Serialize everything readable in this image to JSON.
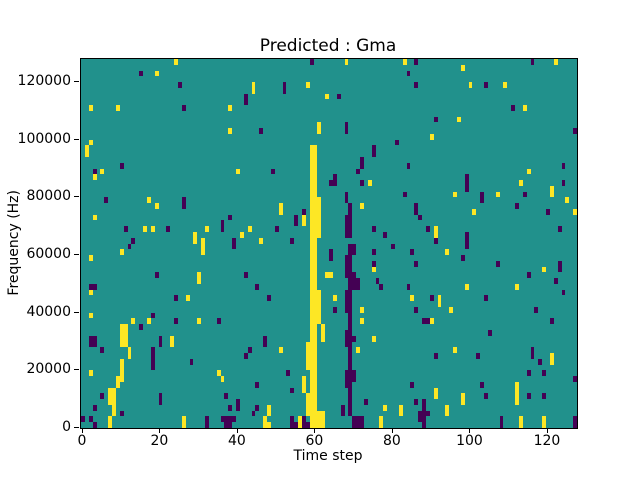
{
  "figure": {
    "title": "Predicted : Gma",
    "xlabel": "Time step",
    "ylabel": "Frequency (Hz)"
  },
  "chart_data": {
    "type": "heatmap",
    "title": "Predicted : Gma",
    "xlabel": "Time step",
    "ylabel": "Frequency (Hz)",
    "x_range": [
      0,
      128
    ],
    "y_range_hz": [
      0,
      128000
    ],
    "grid": {
      "time_steps": 128,
      "freq_bins": 64,
      "hz_per_bin": 2000
    },
    "x_ticks": [
      0,
      20,
      40,
      60,
      80,
      100,
      120
    ],
    "y_ticks": [
      0,
      20000,
      40000,
      60000,
      80000,
      100000,
      120000
    ],
    "legend": null,
    "colors": {
      "background_mid": "#21918c",
      "high_yellow": "#fde725",
      "low_purple": "#440154",
      "figure_bg": "#ffffff",
      "text": "#000000"
    },
    "yellow_runs_t_flo_fhi": [
      [
        59,
        0,
        48
      ],
      [
        60,
        0,
        48
      ],
      [
        61,
        33,
        39
      ],
      [
        61,
        18,
        23
      ],
      [
        61,
        0,
        2
      ],
      [
        58,
        10,
        14
      ],
      [
        58,
        2,
        5
      ],
      [
        62,
        15,
        17
      ],
      [
        62,
        0,
        2
      ],
      [
        57,
        35,
        36
      ],
      [
        57,
        6,
        8
      ],
      [
        24,
        63,
        63
      ],
      [
        68,
        63,
        63
      ],
      [
        83,
        63,
        63
      ],
      [
        122,
        63,
        63
      ],
      [
        19,
        61,
        61
      ],
      [
        98,
        62,
        62
      ],
      [
        44,
        58,
        59
      ],
      [
        58,
        59,
        59
      ],
      [
        63,
        57,
        57
      ],
      [
        100,
        59,
        59
      ],
      [
        109,
        59,
        59
      ],
      [
        2,
        55,
        55
      ],
      [
        9,
        55,
        55
      ],
      [
        38,
        55,
        55
      ],
      [
        114,
        55,
        55
      ],
      [
        38,
        51,
        51
      ],
      [
        61,
        51,
        52
      ],
      [
        97,
        53,
        53
      ],
      [
        90,
        50,
        50
      ],
      [
        1,
        47,
        48
      ],
      [
        2,
        49,
        49
      ],
      [
        5,
        44,
        44
      ],
      [
        40,
        44,
        44
      ],
      [
        115,
        44,
        44
      ],
      [
        3,
        43,
        43
      ],
      [
        51,
        37,
        38
      ],
      [
        72,
        38,
        38
      ],
      [
        17,
        39,
        39
      ],
      [
        19,
        38,
        38
      ],
      [
        3,
        36,
        36
      ],
      [
        96,
        40,
        40
      ],
      [
        107,
        40,
        40
      ],
      [
        121,
        40,
        41
      ],
      [
        113,
        42,
        42
      ],
      [
        74,
        42,
        42
      ],
      [
        16,
        34,
        34
      ],
      [
        18,
        34,
        34
      ],
      [
        32,
        34,
        34
      ],
      [
        91,
        33,
        34
      ],
      [
        101,
        37,
        37
      ],
      [
        125,
        39,
        39
      ],
      [
        127,
        37,
        37
      ],
      [
        29,
        32,
        33
      ],
      [
        31,
        30,
        32
      ],
      [
        41,
        33,
        33
      ],
      [
        43,
        34,
        34
      ],
      [
        46,
        32,
        32
      ],
      [
        10,
        30,
        30
      ],
      [
        94,
        30,
        30
      ],
      [
        2,
        29,
        29
      ],
      [
        30,
        25,
        26
      ],
      [
        63,
        26,
        26
      ],
      [
        64,
        26,
        26
      ],
      [
        75,
        27,
        27
      ],
      [
        27,
        22,
        22
      ],
      [
        65,
        22,
        22
      ],
      [
        85,
        22,
        22
      ],
      [
        92,
        21,
        22
      ],
      [
        2,
        23,
        23
      ],
      [
        99,
        24,
        24
      ],
      [
        112,
        24,
        24
      ],
      [
        119,
        27,
        27
      ],
      [
        72,
        20,
        20
      ],
      [
        72,
        18,
        18
      ],
      [
        95,
        20,
        20
      ],
      [
        90,
        18,
        18
      ],
      [
        13,
        18,
        18
      ],
      [
        17,
        18,
        18
      ],
      [
        30,
        18,
        18
      ],
      [
        2,
        19,
        19
      ],
      [
        23,
        14,
        15
      ],
      [
        51,
        13,
        13
      ],
      [
        96,
        13,
        13
      ],
      [
        71,
        13,
        13
      ],
      [
        121,
        11,
        12
      ],
      [
        10,
        14,
        17
      ],
      [
        11,
        14,
        17
      ],
      [
        12,
        12,
        13
      ],
      [
        10,
        8,
        11
      ],
      [
        9,
        7,
        8
      ],
      [
        8,
        2,
        6
      ],
      [
        7,
        4,
        6
      ],
      [
        75,
        15,
        15
      ],
      [
        2,
        9,
        9
      ],
      [
        35,
        9,
        9
      ],
      [
        36,
        8,
        8
      ],
      [
        91,
        5,
        6
      ],
      [
        98,
        4,
        5
      ],
      [
        112,
        5,
        7
      ],
      [
        112,
        4,
        4
      ],
      [
        94,
        2,
        3
      ],
      [
        48,
        2,
        3
      ],
      [
        78,
        3,
        3
      ],
      [
        82,
        2,
        3
      ],
      [
        7,
        0,
        1
      ],
      [
        26,
        0,
        1
      ],
      [
        47,
        0,
        1
      ],
      [
        48,
        0,
        0
      ],
      [
        56,
        0,
        1
      ],
      [
        77,
        0,
        1
      ],
      [
        113,
        0,
        1
      ],
      [
        119,
        0,
        1
      ]
    ],
    "purple_runs_t_flo_fhi": [
      [
        68,
        39,
        40
      ],
      [
        68,
        33,
        36
      ],
      [
        68,
        26,
        29
      ],
      [
        68,
        20,
        23
      ],
      [
        68,
        14,
        16
      ],
      [
        68,
        7,
        9
      ],
      [
        69,
        2,
        31
      ],
      [
        69,
        33,
        38
      ],
      [
        70,
        30,
        31
      ],
      [
        70,
        24,
        26
      ],
      [
        70,
        15,
        15
      ],
      [
        70,
        8,
        9
      ],
      [
        70,
        0,
        1
      ],
      [
        71,
        24,
        25
      ],
      [
        71,
        0,
        1
      ],
      [
        67,
        2,
        3
      ],
      [
        59,
        63,
        63
      ],
      [
        86,
        63,
        63
      ],
      [
        116,
        63,
        63
      ],
      [
        15,
        61,
        61
      ],
      [
        84,
        61,
        61
      ],
      [
        25,
        59,
        59
      ],
      [
        86,
        59,
        59
      ],
      [
        104,
        59,
        59
      ],
      [
        52,
        58,
        59
      ],
      [
        66,
        57,
        57
      ],
      [
        42,
        56,
        57
      ],
      [
        26,
        55,
        55
      ],
      [
        111,
        55,
        55
      ],
      [
        91,
        53,
        53
      ],
      [
        46,
        51,
        51
      ],
      [
        68,
        51,
        52
      ],
      [
        127,
        51,
        51
      ],
      [
        81,
        49,
        49
      ],
      [
        75,
        47,
        48
      ],
      [
        72,
        45,
        46
      ],
      [
        84,
        45,
        45
      ],
      [
        124,
        45,
        45
      ],
      [
        49,
        44,
        44
      ],
      [
        65,
        43,
        43
      ],
      [
        71,
        44,
        44
      ],
      [
        3,
        44,
        44
      ],
      [
        10,
        45,
        45
      ],
      [
        99,
        42,
        43
      ],
      [
        64,
        42,
        42
      ],
      [
        65,
        42,
        42
      ],
      [
        72,
        42,
        42
      ],
      [
        124,
        42,
        42
      ],
      [
        99,
        41,
        41
      ],
      [
        6,
        39,
        39
      ],
      [
        26,
        38,
        39
      ],
      [
        83,
        40,
        40
      ],
      [
        103,
        39,
        40
      ],
      [
        114,
        40,
        40
      ],
      [
        57,
        37,
        37
      ],
      [
        112,
        38,
        38
      ],
      [
        86,
        37,
        38
      ],
      [
        120,
        37,
        37
      ],
      [
        38,
        36,
        36
      ],
      [
        87,
        36,
        36
      ],
      [
        55,
        35,
        36
      ],
      [
        11,
        34,
        34
      ],
      [
        22,
        34,
        34
      ],
      [
        36,
        34,
        35
      ],
      [
        50,
        34,
        34
      ],
      [
        75,
        34,
        34
      ],
      [
        89,
        34,
        34
      ],
      [
        123,
        34,
        34
      ],
      [
        13,
        32,
        32
      ],
      [
        39,
        31,
        32
      ],
      [
        12,
        31,
        31
      ],
      [
        54,
        32,
        32
      ],
      [
        78,
        33,
        33
      ],
      [
        80,
        31,
        31
      ],
      [
        91,
        32,
        32
      ],
      [
        99,
        31,
        33
      ],
      [
        19,
        26,
        26
      ],
      [
        42,
        26,
        26
      ],
      [
        45,
        24,
        24
      ],
      [
        75,
        30,
        30
      ],
      [
        75,
        28,
        28
      ],
      [
        64,
        29,
        30
      ],
      [
        76,
        25,
        25
      ],
      [
        77,
        24,
        24
      ],
      [
        84,
        24,
        24
      ],
      [
        85,
        30,
        30
      ],
      [
        86,
        28,
        28
      ],
      [
        98,
        29,
        29
      ],
      [
        107,
        28,
        28
      ],
      [
        115,
        26,
        26
      ],
      [
        122,
        25,
        25
      ],
      [
        123,
        27,
        28
      ],
      [
        127,
        8,
        8
      ],
      [
        24,
        22,
        22
      ],
      [
        48,
        22,
        22
      ],
      [
        90,
        22,
        22
      ],
      [
        104,
        22,
        22
      ],
      [
        2,
        24,
        24
      ],
      [
        3,
        24,
        24
      ],
      [
        124,
        23,
        23
      ],
      [
        15,
        17,
        17
      ],
      [
        18,
        19,
        19
      ],
      [
        24,
        18,
        18
      ],
      [
        35,
        18,
        18
      ],
      [
        88,
        18,
        18
      ],
      [
        89,
        18,
        18
      ],
      [
        121,
        18,
        18
      ],
      [
        117,
        20,
        20
      ],
      [
        86,
        20,
        20
      ],
      [
        65,
        20,
        20
      ],
      [
        2,
        14,
        15
      ],
      [
        3,
        14,
        15
      ],
      [
        5,
        13,
        13
      ],
      [
        20,
        14,
        15
      ],
      [
        18,
        10,
        13
      ],
      [
        47,
        14,
        15
      ],
      [
        43,
        13,
        13
      ],
      [
        42,
        12,
        12
      ],
      [
        105,
        16,
        16
      ],
      [
        116,
        12,
        13
      ],
      [
        28,
        11,
        11
      ],
      [
        53,
        9,
        9
      ],
      [
        91,
        12,
        12
      ],
      [
        102,
        12,
        12
      ],
      [
        118,
        11,
        11
      ],
      [
        115,
        9,
        9
      ],
      [
        119,
        9,
        9
      ],
      [
        5,
        5,
        5
      ],
      [
        20,
        4,
        5
      ],
      [
        37,
        5,
        5
      ],
      [
        45,
        7,
        7
      ],
      [
        54,
        6,
        6
      ],
      [
        85,
        7,
        7
      ],
      [
        103,
        7,
        7
      ],
      [
        104,
        5,
        5
      ],
      [
        115,
        5,
        5
      ],
      [
        119,
        5,
        5
      ],
      [
        3,
        3,
        3
      ],
      [
        10,
        2,
        2
      ],
      [
        38,
        3,
        3
      ],
      [
        40,
        3,
        4
      ],
      [
        45,
        3,
        3
      ],
      [
        44,
        2,
        2
      ],
      [
        69,
        2,
        3
      ],
      [
        73,
        4,
        4
      ],
      [
        86,
        4,
        4
      ],
      [
        88,
        2,
        4
      ],
      [
        87,
        1,
        2
      ],
      [
        89,
        2,
        2
      ],
      [
        0,
        1,
        1
      ],
      [
        2,
        1,
        1
      ],
      [
        3,
        0,
        0
      ],
      [
        32,
        0,
        1
      ],
      [
        36,
        1,
        1
      ],
      [
        37,
        0,
        1
      ],
      [
        38,
        0,
        1
      ],
      [
        39,
        1,
        1
      ],
      [
        54,
        0,
        1
      ],
      [
        55,
        0,
        0
      ],
      [
        57,
        0,
        1
      ],
      [
        58,
        0,
        0
      ],
      [
        72,
        0,
        1
      ],
      [
        88,
        0,
        1
      ],
      [
        108,
        0,
        1
      ],
      [
        127,
        0,
        1
      ]
    ]
  }
}
